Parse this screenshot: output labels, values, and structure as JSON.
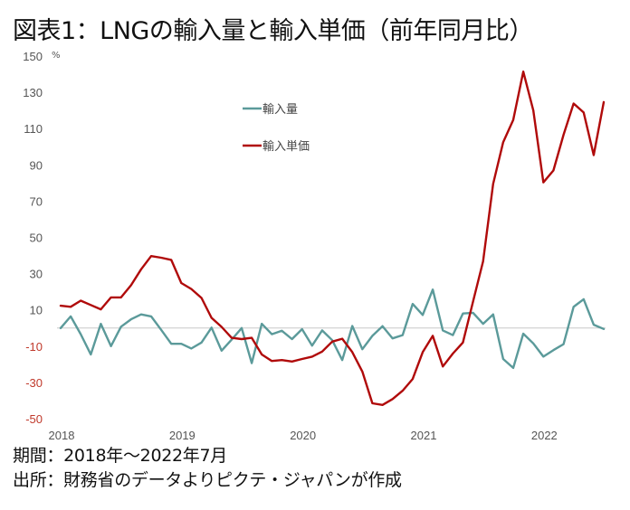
{
  "title": "図表1：LNGの輸入量と輸入単価（前年同月比）",
  "footnotes": {
    "period": "期間：2018年～2022年7月",
    "source": "出所：財務省のデータよりピクテ・ジャパンが作成"
  },
  "chart_data": {
    "type": "line",
    "title": "図表1：LNGの輸入量と輸入単価（前年同月比）",
    "xlabel": "",
    "ylabel": "%",
    "y_unit_label": "%",
    "ylim": [
      -50,
      150
    ],
    "yticks": [
      150,
      130,
      110,
      90,
      70,
      50,
      30,
      10,
      -10,
      -30,
      -50
    ],
    "negative_tick_color": "#c0392b",
    "positive_tick_color": "#555555",
    "x_tick_labels": [
      "2018",
      "2019",
      "2020",
      "2021",
      "2022"
    ],
    "x_start": "2018-01",
    "x_end": "2022-07",
    "frequency": "monthly",
    "grid": false,
    "zero_line": true,
    "legend_position": "top-center",
    "series": [
      {
        "name": "輸入量",
        "color": "#5b9a9a",
        "values": [
          0,
          6.4,
          -3.4,
          -14.6,
          2.3,
          -10,
          0.7,
          4.8,
          7.5,
          6.4,
          -1,
          -8.7,
          -8.7,
          -11.3,
          -8,
          0.2,
          -12.5,
          -6.4,
          0,
          -19.4,
          2.3,
          -3.4,
          -1.5,
          -6.1,
          -0.6,
          -9.7,
          -1.3,
          -6.7,
          -17.7,
          1.1,
          -11.7,
          -4.3,
          1,
          -5.7,
          -3.9,
          13.3,
          7.2,
          21.2,
          -1.3,
          -3.9,
          8,
          8.4,
          2.3,
          7.5,
          -17.1,
          -22,
          -3.1,
          -8.5,
          -15.8,
          -12.2,
          -8.9,
          11.7,
          15.9,
          1.8,
          -0.5
        ]
      },
      {
        "name": "輸入単価",
        "color": "#b00a0a",
        "values": [
          12.3,
          11.7,
          15.1,
          12.7,
          10.3,
          16.9,
          16.9,
          23.6,
          32.4,
          39.7,
          38.8,
          37.6,
          24.8,
          21.5,
          16.6,
          5.6,
          0.6,
          -5.4,
          -6.1,
          -5.4,
          -14.6,
          -18.2,
          -17.7,
          -18.5,
          -17.1,
          -15.8,
          -13,
          -7.5,
          -5.9,
          -13.3,
          -24,
          -41.5,
          -42.4,
          -39.2,
          -34.6,
          -28.1,
          -13.3,
          -4.3,
          -21.2,
          -14.1,
          -8,
          14.6,
          36.8,
          79.5,
          102.5,
          114.8,
          141.4,
          120,
          80.3,
          86.9,
          106.6,
          123.8,
          118.9,
          95.4,
          124.6
        ]
      }
    ]
  }
}
